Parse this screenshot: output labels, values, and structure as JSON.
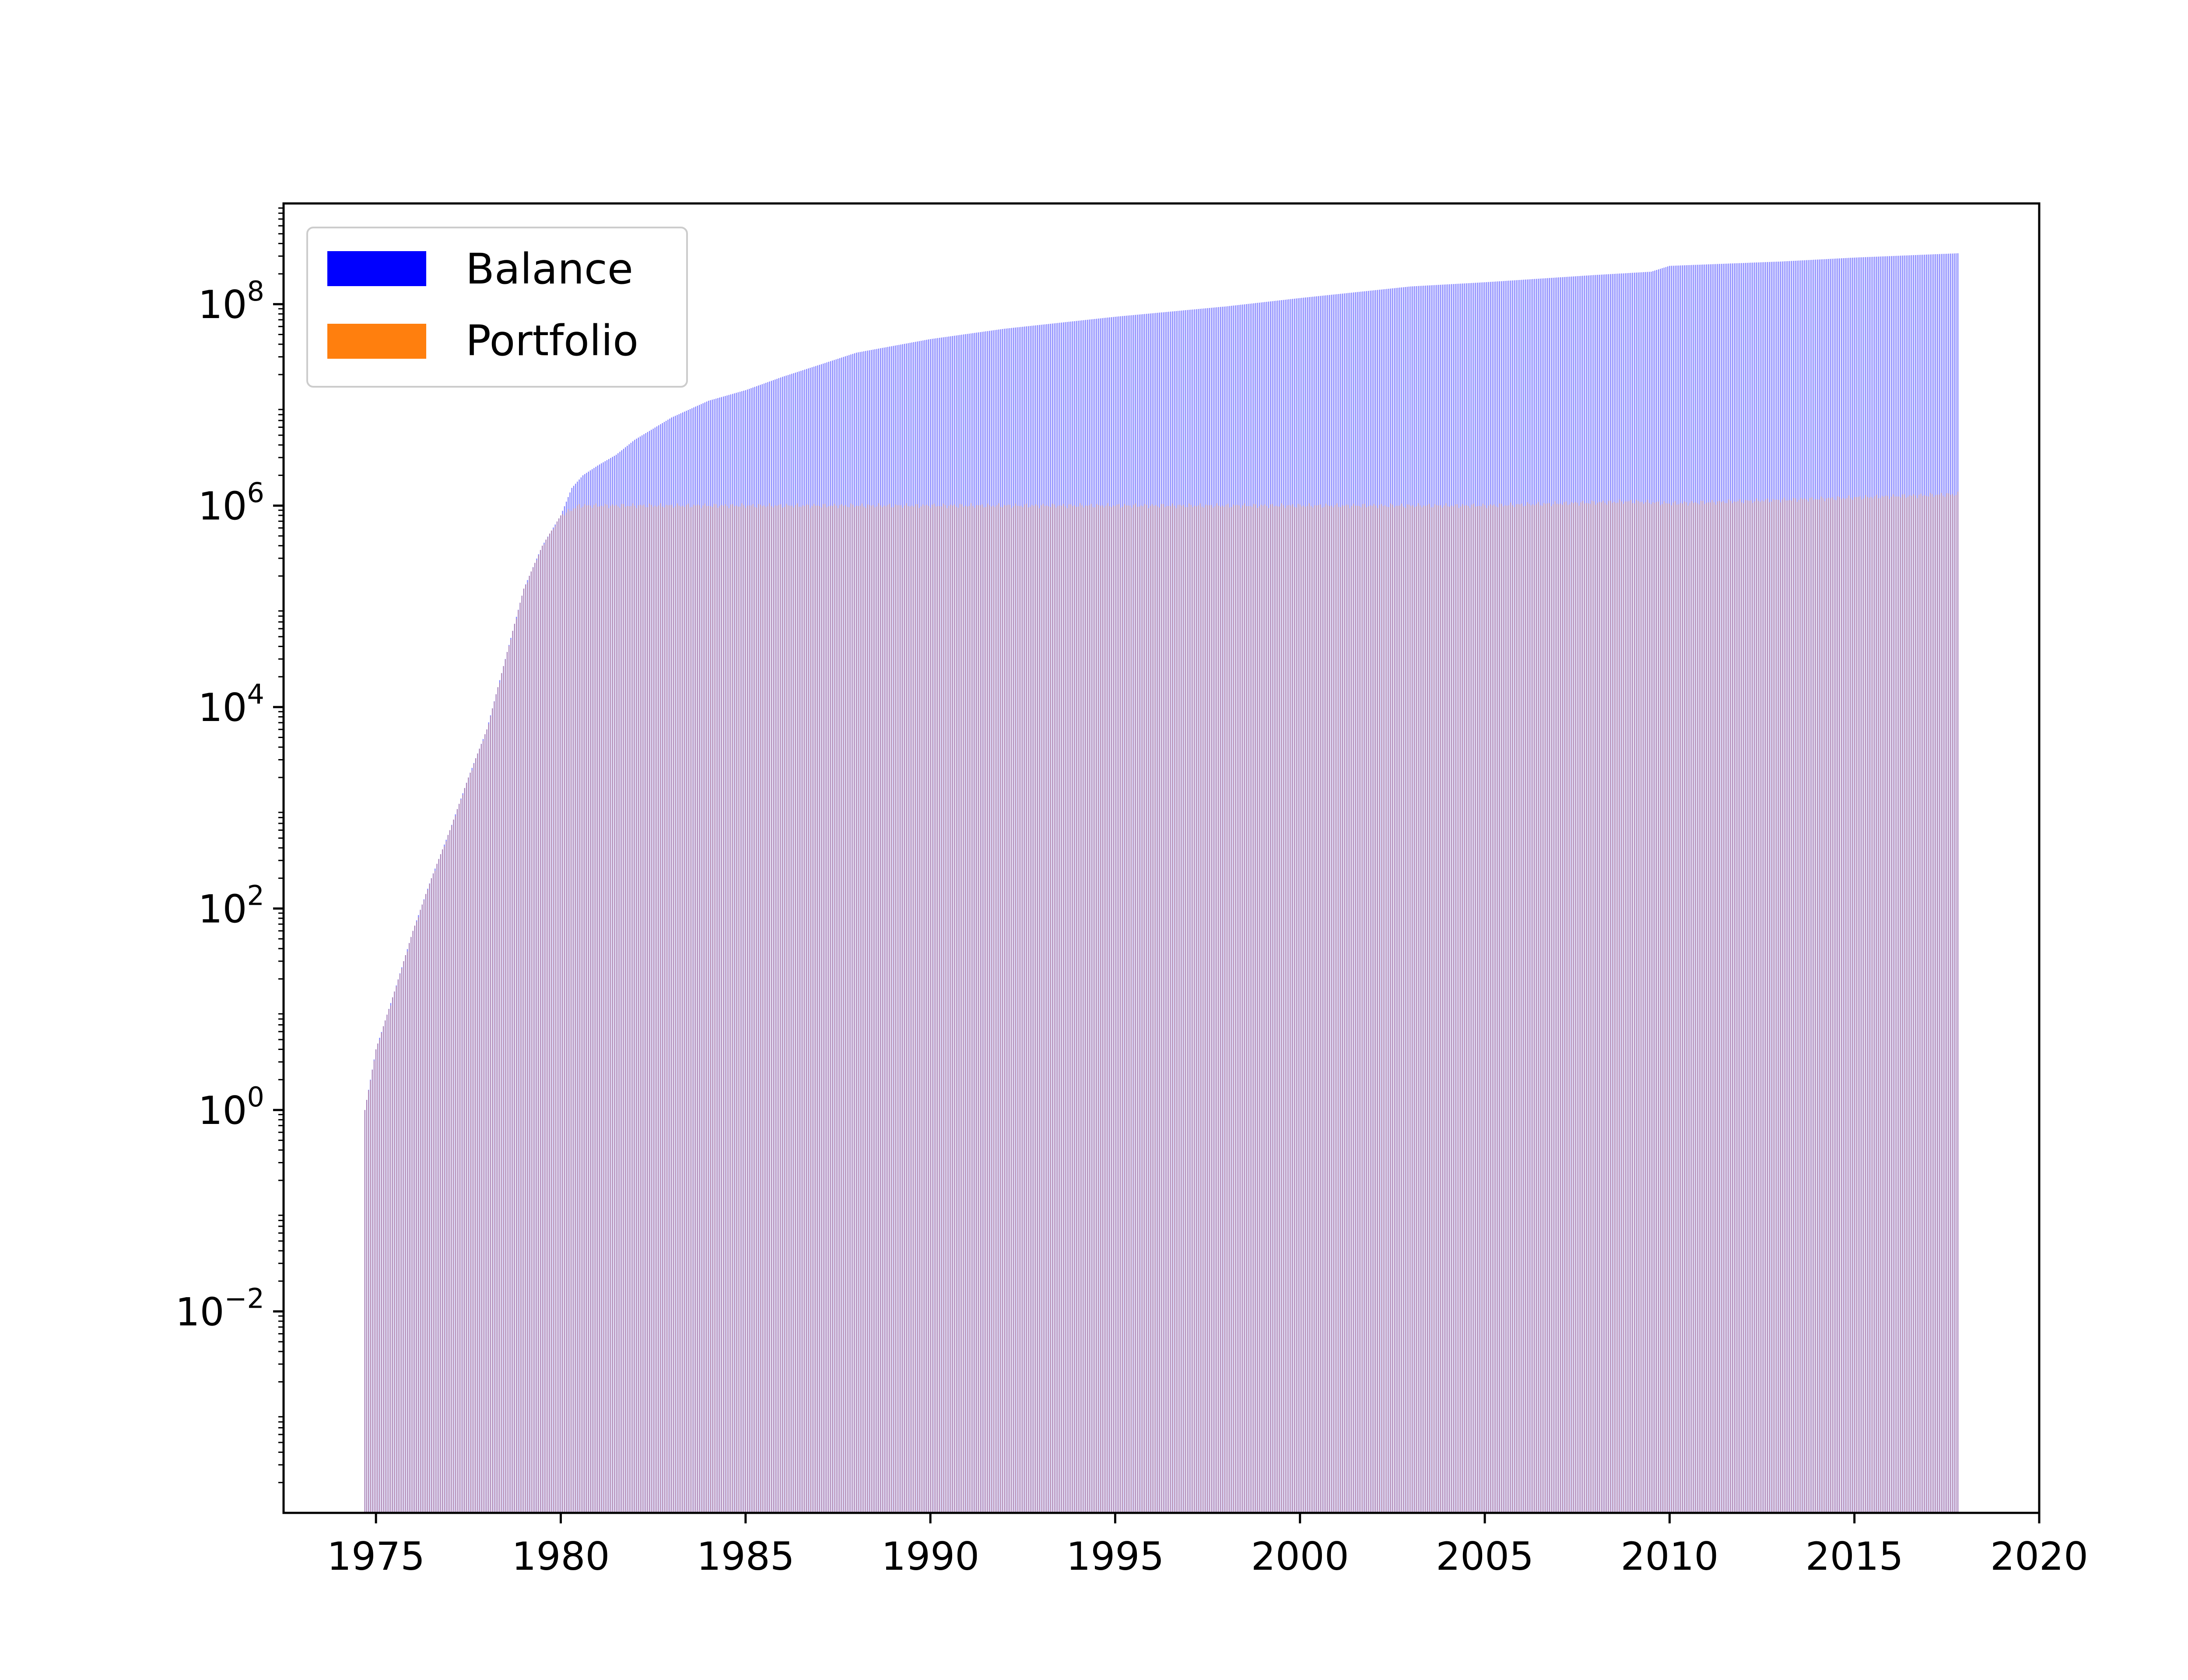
{
  "chart_data": {
    "type": "bar",
    "title": "",
    "xlabel": "",
    "ylabel": "",
    "x_range": [
      1972.5,
      2020
    ],
    "x_ticks": [
      1975,
      1980,
      1985,
      1990,
      1995,
      2000,
      2005,
      2010,
      2015,
      2020
    ],
    "y_scale": "log",
    "y_range": [
      0.0001,
      1000000000.0
    ],
    "y_ticks": [
      {
        "value": 0.01,
        "base": "10",
        "exponent": "−2"
      },
      {
        "value": 1,
        "base": "10",
        "exponent": "0"
      },
      {
        "value": 100,
        "base": "10",
        "exponent": "2"
      },
      {
        "value": 10000,
        "base": "10",
        "exponent": "4"
      },
      {
        "value": 1000000,
        "base": "10",
        "exponent": "6"
      },
      {
        "value": 100000000,
        "base": "10",
        "exponent": "8"
      }
    ],
    "grid": false,
    "legend_position": "top-left",
    "x_start": 1974.7,
    "x_end": 2017.8,
    "series": [
      {
        "name": "Balance",
        "color": "#0000ff",
        "x": [
          1974.7,
          1975.0,
          1975.5,
          1976.0,
          1976.5,
          1977.0,
          1977.5,
          1978.0,
          1978.5,
          1979.0,
          1979.5,
          1980.0,
          1980.3,
          1980.6,
          1981.0,
          1981.5,
          1982.0,
          1983.0,
          1984.0,
          1985.0,
          1986.0,
          1987.0,
          1988.0,
          1990.0,
          1992.0,
          1995.0,
          1998.0,
          2000.0,
          2003.0,
          2005.0,
          2008.0,
          2009.5,
          2010.0,
          2013.0,
          2015.0,
          2017.8
        ],
        "values": [
          1,
          4,
          15,
          60,
          200,
          600,
          2000,
          6000,
          30000,
          150000,
          400000,
          800000,
          1500000,
          2000000,
          2500000,
          3200000,
          4500000,
          7500000,
          11000000,
          14000000,
          19000000,
          25000000,
          33000000,
          45000000,
          57000000,
          75000000,
          95000000,
          115000000,
          150000000,
          165000000,
          195000000,
          210000000,
          240000000,
          265000000,
          290000000,
          320000000
        ]
      },
      {
        "name": "Portfolio",
        "color": "#ff7f0e",
        "x": [
          1974.7,
          1975.0,
          1975.5,
          1976.0,
          1976.5,
          1977.0,
          1977.5,
          1978.0,
          1978.5,
          1979.0,
          1979.5,
          1980.0,
          1980.5,
          1981.0,
          1985.0,
          1990.0,
          1995.0,
          2000.0,
          2005.0,
          2009.0,
          2010.0,
          2015.0,
          2017.8
        ],
        "values": [
          1,
          4,
          15,
          60,
          200,
          600,
          2000,
          6000,
          30000,
          150000,
          400000,
          800000,
          1000000,
          1000000,
          1000000,
          1000000,
          1000000,
          1000000,
          1000000,
          1100000,
          1050000,
          1200000,
          1300000
        ]
      }
    ]
  }
}
